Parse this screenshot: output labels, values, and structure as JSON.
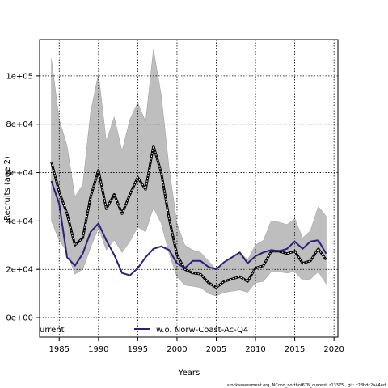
{
  "chart_data": {
    "type": "line",
    "xlabel": "Years",
    "ylabel": "Recruits (age 2)",
    "xlim": [
      1982.5,
      2020.5
    ],
    "ylim": [
      -8000,
      115000
    ],
    "x_ticks": [
      1985,
      1990,
      1995,
      2000,
      2005,
      2010,
      2015,
      2020
    ],
    "x_tick_labels": [
      "1985",
      "1990",
      "1995",
      "2000",
      "2005",
      "2010",
      "2015",
      "2020"
    ],
    "y_ticks": [
      0,
      20000,
      40000,
      60000,
      80000,
      100000
    ],
    "y_tick_labels": [
      "0e+00",
      "2e+04",
      "4e+04",
      "6e+04",
      "8e+04",
      "1e+05"
    ],
    "grid": true,
    "legend_position": "bottom",
    "x": [
      1984,
      1985,
      1986,
      1987,
      1988,
      1989,
      1990,
      1991,
      1992,
      1993,
      1994,
      1995,
      1996,
      1997,
      1998,
      1999,
      2000,
      2001,
      2002,
      2003,
      2004,
      2005,
      2006,
      2007,
      2008,
      2009,
      2010,
      2011,
      2012,
      2013,
      2014,
      2015,
      2016,
      2017,
      2018,
      2019
    ],
    "series": [
      {
        "name": "urrent",
        "color": "#000000",
        "values": [
          64500,
          52000,
          43000,
          30000,
          33000,
          50000,
          61000,
          45000,
          51000,
          43000,
          51000,
          58000,
          53000,
          71000,
          60000,
          41000,
          26000,
          20000,
          18500,
          18000,
          14500,
          12500,
          15000,
          16000,
          17000,
          15000,
          20500,
          21500,
          27500,
          27500,
          26500,
          27500,
          22500,
          23500,
          28500,
          24000
        ],
        "band_upper": [
          107000,
          82000,
          71000,
          50000,
          55000,
          85000,
          101000,
          73000,
          83000,
          69000,
          82000,
          89000,
          81000,
          111000,
          92000,
          62000,
          39000,
          30000,
          28000,
          27000,
          23500,
          20000,
          23000,
          24500,
          27000,
          24000,
          30000,
          32000,
          40000,
          39500,
          38500,
          41000,
          33000,
          36000,
          46000,
          42000
        ],
        "band_lower": [
          40000,
          32000,
          27000,
          18000,
          20000,
          29000,
          37000,
          28000,
          32000,
          27000,
          31500,
          37500,
          35500,
          45500,
          39000,
          26500,
          17000,
          13500,
          13000,
          12500,
          10000,
          9000,
          10500,
          11000,
          11500,
          10500,
          14500,
          15000,
          19000,
          19000,
          18500,
          19000,
          15500,
          16000,
          19000,
          14000
        ]
      },
      {
        "name": "w.o. Norw-Coast-Ac-Q4",
        "color": "#2e1f7a",
        "values": [
          56500,
          47000,
          25000,
          21500,
          26500,
          35500,
          39000,
          32000,
          26000,
          18500,
          17500,
          20500,
          25000,
          28500,
          29500,
          28000,
          22500,
          20500,
          23500,
          23500,
          21000,
          20000,
          23000,
          25000,
          27000,
          22500,
          25500,
          27000,
          28000,
          27500,
          28500,
          31500,
          28500,
          31500,
          32000,
          26500
        ]
      }
    ]
  },
  "footer": "stockassessment.org,  NCcod_northof67N_current,  r13375 ,  git: c28bdc2a44ed"
}
